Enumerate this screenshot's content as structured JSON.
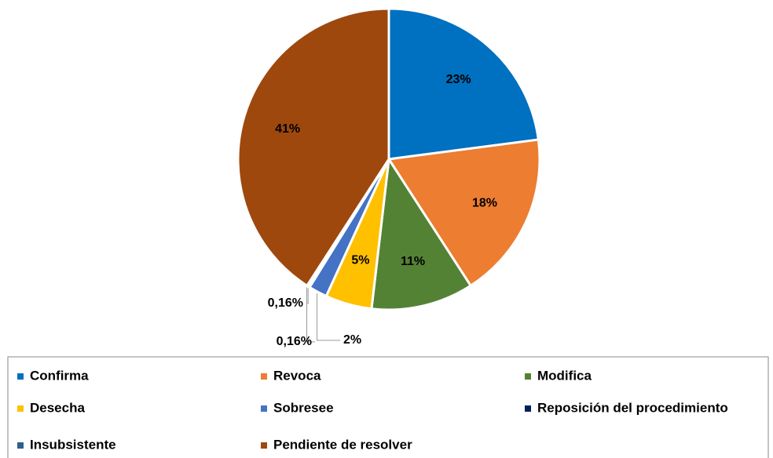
{
  "chart_data": {
    "type": "pie",
    "categories": [
      "Confirma",
      "Revoca",
      "Modifica",
      "Desecha",
      "Sobresee",
      "Reposición del procedimiento",
      "Insubsistente",
      "Pendiente de resolver"
    ],
    "values": [
      23,
      18,
      11,
      5,
      2,
      0.16,
      0.16,
      41
    ],
    "value_labels": [
      "23%",
      "18%",
      "11%",
      "5%",
      "2%",
      "0,16%",
      "0,16%",
      "41%"
    ],
    "colors": [
      "#0070c0",
      "#ed7d31",
      "#548235",
      "#ffc000",
      "#4472c4",
      "#002060",
      "#2e5f8e",
      "#9e480e"
    ],
    "legend": "bottom"
  }
}
